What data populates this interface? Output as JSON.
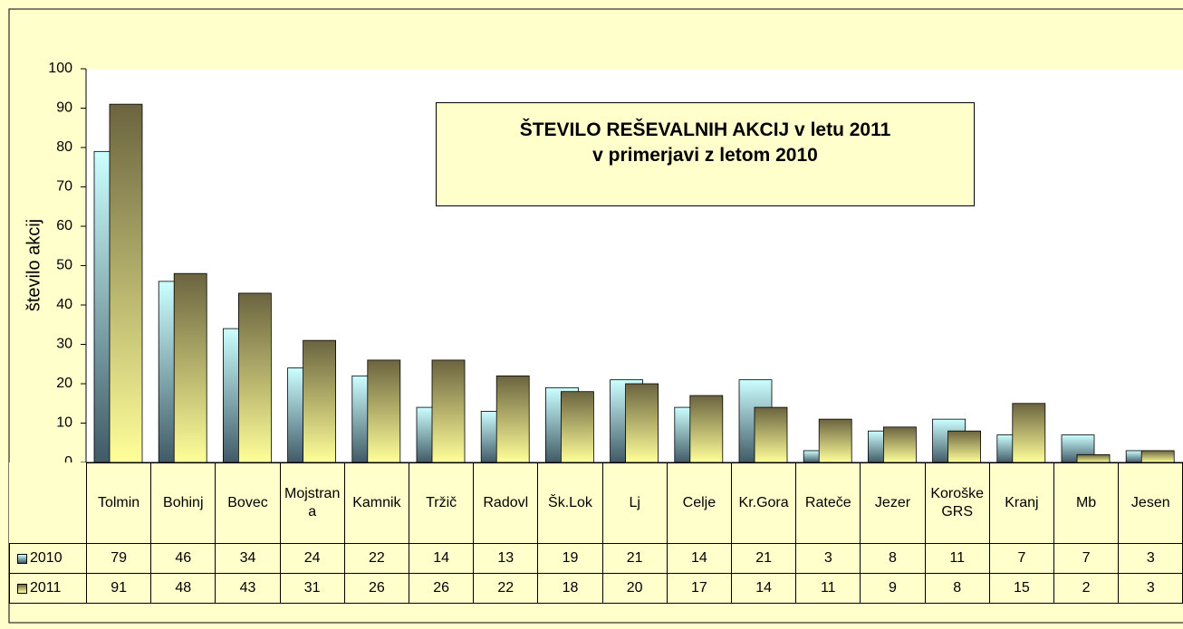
{
  "chart_data": {
    "type": "bar",
    "title": [
      "ŠTEVILO REŠEVALNIH AKCIJ v letu 2011",
      "v primerjavi z  letom 2010"
    ],
    "y_label": "število akcij",
    "categories": [
      "Tolmin",
      "Bohinj",
      "Bovec",
      "Mojstrana",
      "Kamnik",
      "Tržič",
      "Radovl",
      "Šk.Lok",
      "Lj",
      "Celje",
      "Kr.Gora",
      "Rateče",
      "Jezer",
      "Koroške GRS",
      "Kranj",
      "Mb",
      "Jesen"
    ],
    "series": [
      {
        "name": "2010",
        "color": "#ccffff",
        "values": [
          79,
          46,
          34,
          24,
          22,
          14,
          13,
          19,
          21,
          14,
          21,
          3,
          8,
          11,
          7,
          7,
          3
        ]
      },
      {
        "name": "2011",
        "color": "#6b6440",
        "values": [
          91,
          48,
          43,
          31,
          26,
          26,
          22,
          18,
          20,
          17,
          14,
          11,
          9,
          8,
          15,
          2,
          3
        ]
      }
    ],
    "ylim": [
      0,
      100
    ],
    "yticks": [
      0,
      10,
      20,
      30,
      40,
      50,
      60,
      70,
      80,
      90,
      100
    ],
    "grid": false
  }
}
